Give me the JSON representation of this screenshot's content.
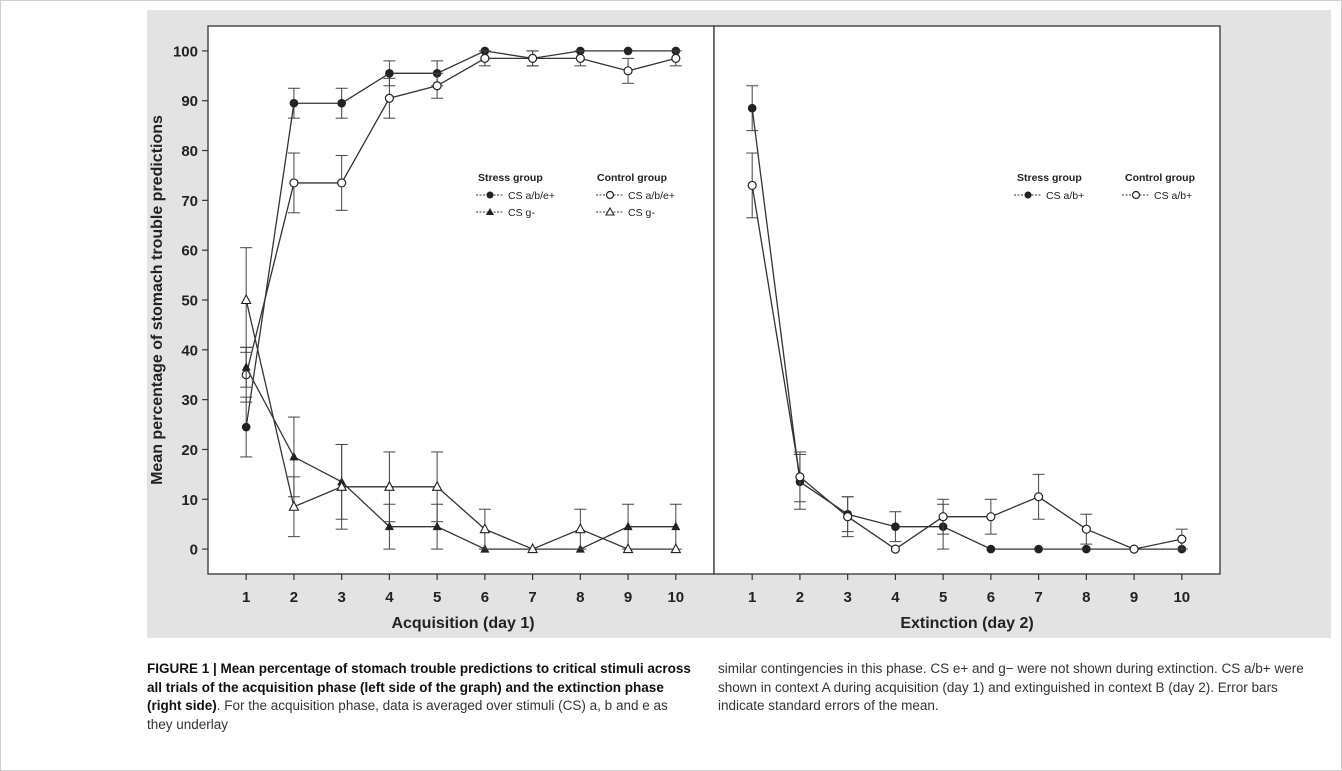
{
  "chart_data": {
    "type": "line",
    "ylabel": "Mean percentage of stomach trouble predictions",
    "ylim": [
      -5,
      105
    ],
    "yticks": [
      0,
      10,
      20,
      30,
      40,
      50,
      60,
      70,
      80,
      90,
      100
    ],
    "panels": [
      {
        "xlabel": "Acquisition (day 1)",
        "x": [
          1,
          2,
          3,
          4,
          5,
          6,
          7,
          8,
          9,
          10
        ],
        "xlim": [
          0.2,
          10.8
        ],
        "legend": {
          "stress_header": "Stress group",
          "control_header": "Control group",
          "stress_items": [
            "CS a/b/e+",
            "CS g-"
          ],
          "control_items": [
            "CS a/b/e+",
            "CS g-"
          ]
        },
        "series": [
          {
            "group": "Stress group",
            "stimulus": "CS a/b/e+",
            "marker": "filled-circle",
            "values": [
              24.5,
              89.5,
              89.5,
              95.5,
              95.5,
              100,
              98.5,
              100,
              100,
              100
            ],
            "error": [
              6,
              3,
              3,
              2.5,
              2.5,
              0,
              1.5,
              0,
              0,
              0
            ]
          },
          {
            "group": "Control group",
            "stimulus": "CS a/b/e+",
            "marker": "open-circle",
            "values": [
              35,
              73.5,
              73.5,
              90.5,
              93,
              98.5,
              98.5,
              98.5,
              96,
              98.5
            ],
            "error": [
              5.5,
              6,
              5.5,
              4,
              2.5,
              1.5,
              1.5,
              1.5,
              2.5,
              1.5
            ]
          },
          {
            "group": "Stress group",
            "stimulus": "CS g-",
            "marker": "filled-triangle",
            "values": [
              36.5,
              18.5,
              13.5,
              4.5,
              4.5,
              0,
              0,
              0,
              4.5,
              4.5
            ],
            "error": [
              4,
              8,
              7.5,
              4.5,
              4.5,
              0,
              0,
              0,
              4.5,
              4.5
            ]
          },
          {
            "group": "Control group",
            "stimulus": "CS g-",
            "marker": "open-triangle",
            "values": [
              50,
              8.5,
              12.5,
              12.5,
              12.5,
              4,
              0,
              4,
              0,
              0
            ],
            "error": [
              10.5,
              6,
              8.5,
              7,
              7,
              4,
              0,
              4,
              0,
              0
            ]
          }
        ]
      },
      {
        "xlabel": "Extinction (day 2)",
        "x": [
          1,
          2,
          3,
          4,
          5,
          6,
          7,
          8,
          9,
          10
        ],
        "xlim": [
          0.2,
          10.8
        ],
        "legend": {
          "stress_header": "Stress group",
          "control_header": "Control group",
          "stress_items": [
            "CS a/b+"
          ],
          "control_items": [
            "CS a/b+"
          ]
        },
        "series": [
          {
            "group": "Stress group",
            "stimulus": "CS a/b+",
            "marker": "filled-circle",
            "values": [
              88.5,
              13.5,
              7,
              4.5,
              4.5,
              0,
              0,
              0,
              0,
              0
            ],
            "error": [
              4.5,
              5.5,
              3.5,
              3,
              4.5,
              0,
              0,
              0,
              0,
              0
            ]
          },
          {
            "group": "Control group",
            "stimulus": "CS a/b+",
            "marker": "open-circle",
            "values": [
              73,
              14.5,
              6.5,
              0,
              6.5,
              6.5,
              10.5,
              4,
              0,
              2
            ],
            "error": [
              6.5,
              5,
              4,
              0,
              3.5,
              3.5,
              4.5,
              3,
              0,
              2
            ]
          }
        ]
      }
    ]
  },
  "caption": {
    "left_bold": "FIGURE 1 | Mean percentage of stomach trouble predictions to critical stimuli across all trials of the acquisition phase (left side of the graph) and the extinction phase (right side)",
    "left_text": ". For the acquisition phase, data is averaged over stimuli (CS) a, b and e as they underlay",
    "right_text": "similar contingencies in this phase. CS e+ and g− were not shown during extinction. CS a/b+ were shown in context A during acquisition (day 1) and extinguished in context B (day 2). Error bars indicate standard errors of the mean."
  }
}
